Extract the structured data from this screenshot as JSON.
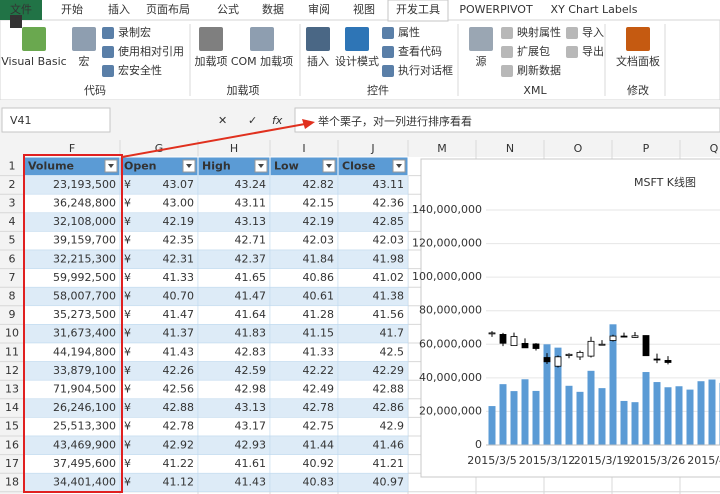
{
  "ribbon": {
    "file_tab": "文件",
    "key_tip": "F",
    "tabs": [
      "开始",
      "插入",
      "页面布局",
      "公式",
      "数据",
      "审阅",
      "视图",
      "开发工具",
      "POWERPIVOT",
      "XY Chart Labels"
    ],
    "groups": [
      {
        "label": "代码",
        "items": [
          "Visual Basic",
          "宏",
          "录制宏",
          "使用相对引用",
          "宏安全性"
        ]
      },
      {
        "label": "加载项",
        "items": [
          "加载项",
          "COM 加载项"
        ]
      },
      {
        "label": "控件",
        "items": [
          "插入",
          "设计模式",
          "属性",
          "查看代码",
          "执行对话框"
        ]
      },
      {
        "label": "XML",
        "items": [
          "源",
          "映射属性",
          "扩展包",
          "刷新数据",
          "导入",
          "导出"
        ]
      },
      {
        "label": "修改",
        "items": [
          "文档面板"
        ]
      }
    ]
  },
  "formula_bar": {
    "name_box": "V41",
    "function_icon": "fx"
  },
  "annotation": "举个栗子，对一列进行排序看看",
  "sheet": {
    "columns": [
      "F",
      "G",
      "H",
      "I",
      "J",
      "M",
      "N",
      "O",
      "P",
      "Q"
    ],
    "row_numbers": [
      1,
      2,
      3,
      4,
      5,
      6,
      7,
      8,
      9,
      10,
      11,
      12,
      13,
      14,
      15,
      16,
      17,
      18
    ],
    "header": [
      "Volume",
      "Open",
      "High",
      "Low",
      "Close"
    ],
    "currency": "¥",
    "rows": [
      [
        "23,193,500",
        "43.07",
        "43.24",
        "42.82",
        "43.11"
      ],
      [
        "36,248,800",
        "43.00",
        "43.11",
        "42.15",
        "42.36"
      ],
      [
        "32,108,000",
        "42.19",
        "43.13",
        "42.19",
        "42.85"
      ],
      [
        "39,159,700",
        "42.35",
        "42.71",
        "42.03",
        "42.03"
      ],
      [
        "32,215,300",
        "42.31",
        "42.37",
        "41.84",
        "41.98"
      ],
      [
        "59,992,500",
        "41.33",
        "41.65",
        "40.86",
        "41.02"
      ],
      [
        "58,007,700",
        "40.70",
        "41.47",
        "40.61",
        "41.38"
      ],
      [
        "35,273,500",
        "41.47",
        "41.64",
        "41.28",
        "41.56"
      ],
      [
        "31,673,400",
        "41.37",
        "41.83",
        "41.15",
        "41.7"
      ],
      [
        "44,194,800",
        "41.43",
        "42.83",
        "41.33",
        "42.5"
      ],
      [
        "33,879,100",
        "42.26",
        "42.59",
        "42.22",
        "42.29"
      ],
      [
        "71,904,500",
        "42.56",
        "42.98",
        "42.49",
        "42.88"
      ],
      [
        "26,246,100",
        "42.88",
        "43.13",
        "42.78",
        "42.86"
      ],
      [
        "25,513,300",
        "42.78",
        "43.17",
        "42.75",
        "42.9"
      ],
      [
        "43,469,900",
        "42.92",
        "42.93",
        "41.44",
        "41.46"
      ],
      [
        "37,495,600",
        "41.22",
        "41.61",
        "40.92",
        "41.21"
      ],
      [
        "34,401,400",
        "41.12",
        "41.43",
        "40.83",
        "40.97"
      ]
    ]
  },
  "chart": {
    "type": "stock",
    "title": "MSFT K线图",
    "categories": [
      "2015/3/5",
      null,
      null,
      null,
      null,
      "2015/3/12",
      null,
      null,
      null,
      null,
      "2015/3/19",
      null,
      null,
      null,
      null,
      "2015/3/26",
      null,
      null,
      null,
      null,
      "2015/4/2",
      null
    ],
    "volume": {
      "color": "#5b9bd5",
      "values": [
        23193500,
        36248800,
        32108000,
        39159700,
        32215300,
        59992500,
        58007700,
        35273500,
        31673400,
        44194800,
        33879100,
        71904500,
        26246100,
        25513300,
        43469900,
        37495600,
        34401400,
        35000000,
        33000000,
        38000000,
        39000000,
        37000000
      ]
    },
    "open": [
      43.07,
      43.0,
      42.19,
      42.35,
      42.31,
      41.33,
      40.7,
      41.47,
      41.37,
      41.43,
      42.26,
      42.56,
      42.88,
      42.78,
      42.92,
      41.22,
      41.12,
      null,
      null,
      null,
      null,
      null
    ],
    "high": [
      43.24,
      43.11,
      43.13,
      42.71,
      42.37,
      41.65,
      41.47,
      41.64,
      41.83,
      42.83,
      42.59,
      42.98,
      43.13,
      43.17,
      42.93,
      41.61,
      41.43,
      null,
      null,
      null,
      null,
      null
    ],
    "low": [
      42.82,
      42.15,
      42.19,
      42.03,
      41.84,
      40.86,
      40.61,
      41.28,
      41.15,
      41.33,
      42.22,
      42.49,
      42.78,
      42.75,
      41.44,
      40.92,
      40.83,
      null,
      null,
      null,
      null,
      null
    ],
    "close": [
      43.11,
      42.36,
      42.85,
      42.03,
      41.98,
      41.02,
      41.38,
      41.56,
      41.7,
      42.5,
      42.29,
      42.88,
      42.86,
      42.9,
      41.46,
      41.21,
      40.97,
      null,
      null,
      null,
      null,
      null
    ],
    "ylim": [
      0,
      140000000
    ],
    "yticks": [
      0,
      {
        "value": 20000000,
        "label": "20,000,000"
      },
      {
        "value": 40000000,
        "label": "40,000,000"
      },
      {
        "value": 60000000,
        "label": "60,000,000"
      },
      {
        "value": 80000000,
        "label": "80,000,000"
      },
      {
        "value": 100000000,
        "label": "100,000,000"
      },
      {
        "value": 120000000,
        "label": "120,000,000"
      },
      {
        "value": 140000000,
        "label": "140,000,000"
      }
    ],
    "y2lim": [
      35,
      52
    ],
    "grid": true
  }
}
